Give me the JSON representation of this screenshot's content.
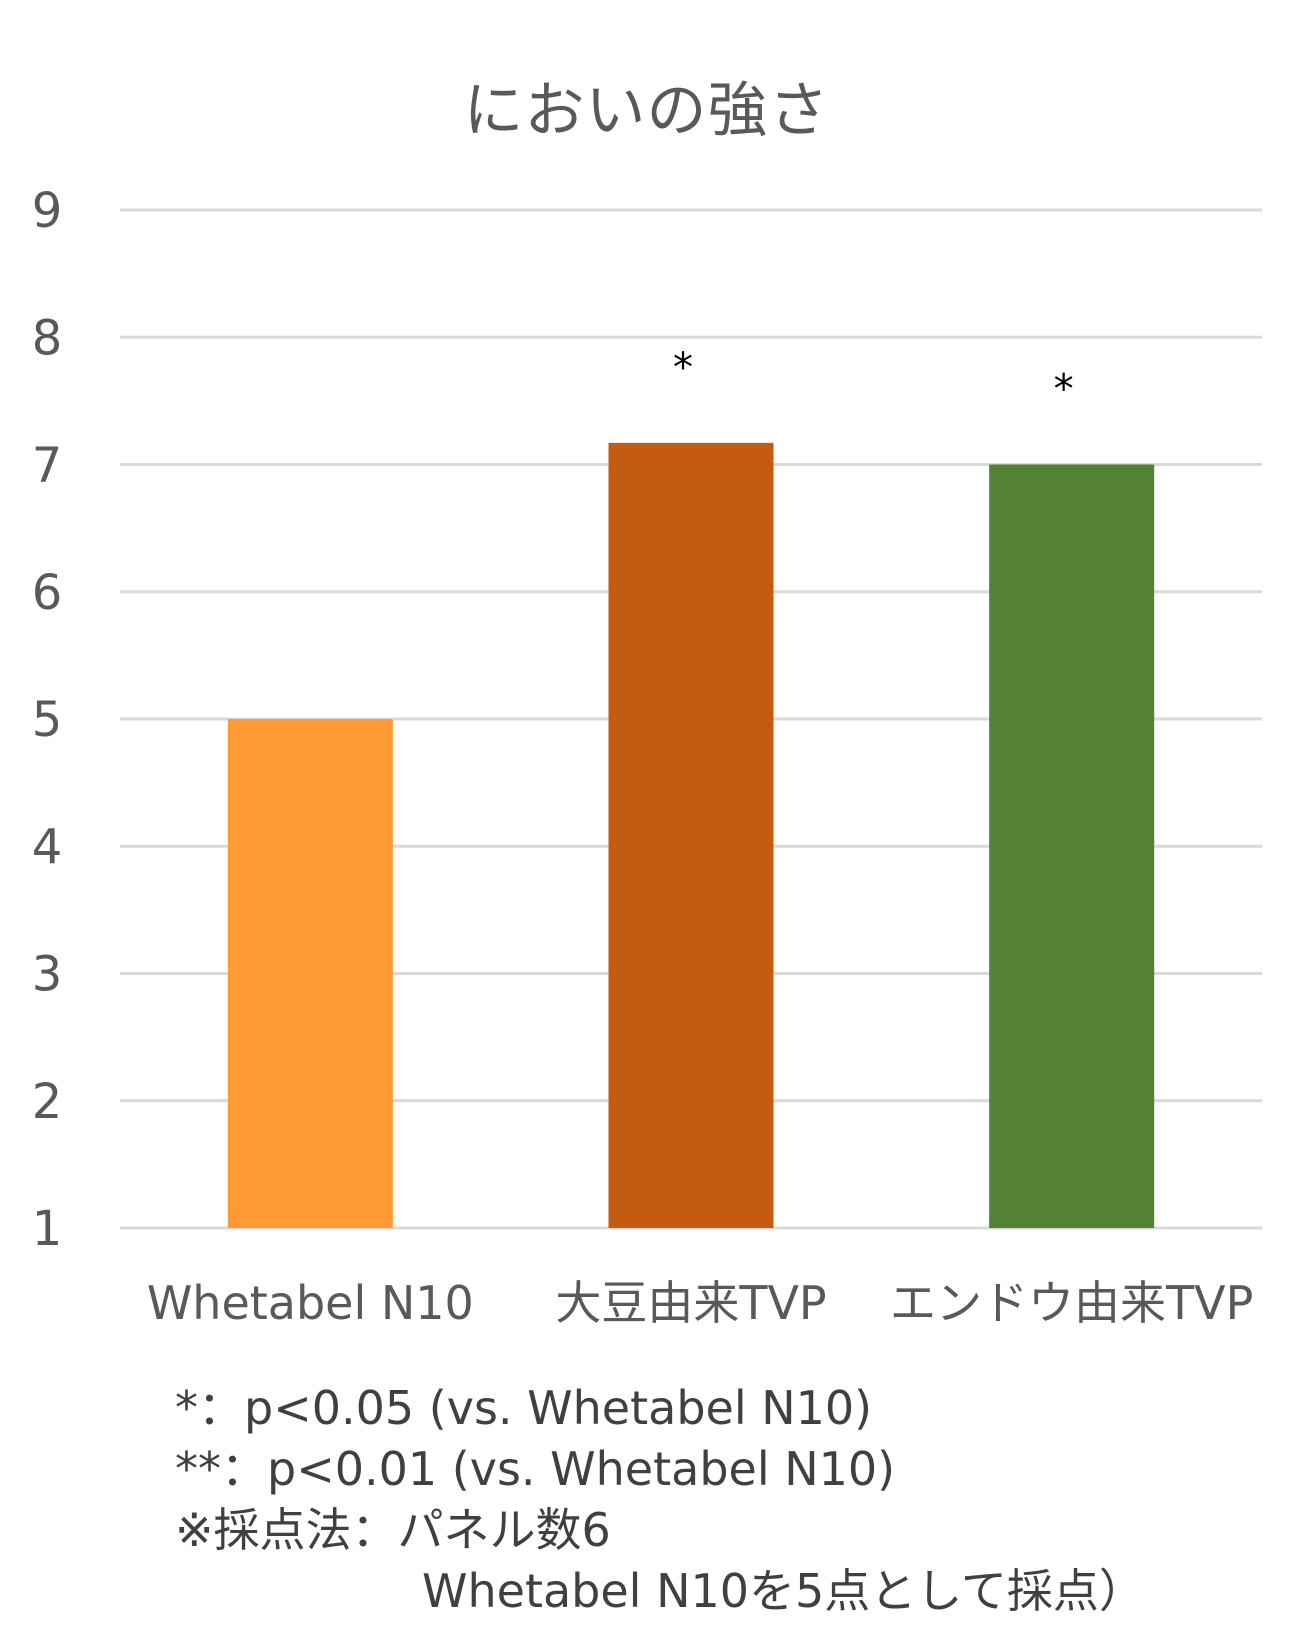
{
  "chart_data": {
    "type": "bar",
    "title": "においの強さ",
    "categories": [
      "Whetabel N10",
      "大豆由来TVP",
      "エンドウ由来TVP"
    ],
    "values": [
      5.0,
      7.17,
      7.0
    ],
    "significance": [
      "",
      "*",
      "*"
    ],
    "colors": [
      "#FF9933",
      "#C55A11",
      "#548235"
    ],
    "ylim": [
      1,
      9
    ],
    "yticks": [
      1,
      2,
      3,
      4,
      5,
      6,
      7,
      8,
      9
    ],
    "xlabel": "",
    "ylabel": "",
    "grid": true,
    "legend": "none"
  },
  "notes": {
    "line1": "*：p<0.05 (vs. Whetabel N10)",
    "line2": "**：p<0.01 (vs. Whetabel N10)",
    "line3": "※採点法：パネル数6",
    "line4": "Whetabel N10を5点として採点）"
  }
}
